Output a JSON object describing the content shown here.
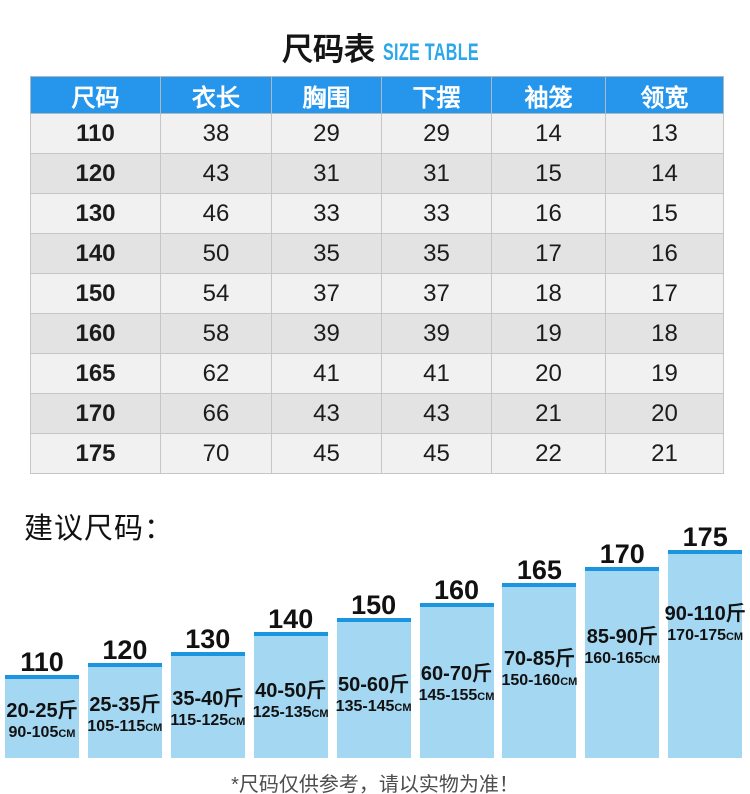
{
  "title": {
    "zh": "尺码表",
    "en": "SIZE TABLE"
  },
  "size_table": {
    "headers": [
      "尺码",
      "衣长",
      "胸围",
      "下摆",
      "袖笼",
      "领宽"
    ],
    "rows": [
      [
        "110",
        "38",
        "29",
        "29",
        "14",
        "13"
      ],
      [
        "120",
        "43",
        "31",
        "31",
        "15",
        "14"
      ],
      [
        "130",
        "46",
        "33",
        "33",
        "16",
        "15"
      ],
      [
        "140",
        "50",
        "35",
        "35",
        "17",
        "16"
      ],
      [
        "150",
        "54",
        "37",
        "37",
        "18",
        "17"
      ],
      [
        "160",
        "58",
        "39",
        "39",
        "19",
        "18"
      ],
      [
        "165",
        "62",
        "41",
        "41",
        "20",
        "19"
      ],
      [
        "170",
        "66",
        "43",
        "43",
        "21",
        "20"
      ],
      [
        "175",
        "70",
        "45",
        "45",
        "22",
        "21"
      ]
    ]
  },
  "chart_data": {
    "type": "bar",
    "title": "建议尺码：",
    "categories": [
      "110",
      "120",
      "130",
      "140",
      "150",
      "160",
      "165",
      "170",
      "175"
    ],
    "bars": [
      {
        "size": "110",
        "weight": "20-25斤",
        "height": "90-105cm"
      },
      {
        "size": "120",
        "weight": "25-35斤",
        "height": "105-115cm"
      },
      {
        "size": "130",
        "weight": "35-40斤",
        "height": "115-125cm"
      },
      {
        "size": "140",
        "weight": "40-50斤",
        "height": "125-135cm"
      },
      {
        "size": "150",
        "weight": "50-60斤",
        "height": "135-145cm"
      },
      {
        "size": "160",
        "weight": "60-70斤",
        "height": "145-155cm"
      },
      {
        "size": "165",
        "weight": "70-85斤",
        "height": "150-160cm"
      },
      {
        "size": "170",
        "weight": "85-90斤",
        "height": "160-165cm"
      },
      {
        "size": "175",
        "weight": "90-110斤",
        "height": "170-175cm"
      }
    ],
    "legend": "none",
    "ylabel": "",
    "xlabel": ""
  },
  "footnote": "*尺码仅供参考，请以实物为准！",
  "colors": {
    "header_blue": "#2596ec",
    "subtitle_blue": "#2ba7ea",
    "bar_fill": "#a4d7f2",
    "bar_cap": "#1b95e0",
    "row_light": "#f1f1f1",
    "row_dark": "#e3e3e3"
  }
}
